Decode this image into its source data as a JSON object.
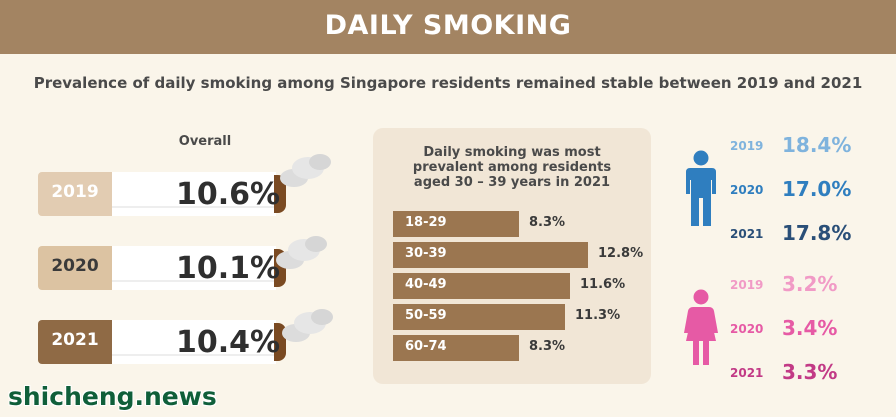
{
  "header": {
    "title": "DAILY SMOKING"
  },
  "subtitle": "Prevalence of daily smoking among Singapore residents remained stable between 2019 and 2021",
  "overall": {
    "label": "Overall",
    "items": [
      {
        "year": "2019",
        "value": "10.6%",
        "filter_color": "#e2ccb2",
        "text_color": "#ffffff"
      },
      {
        "year": "2020",
        "value": "10.1%",
        "filter_color": "#dcc3a2",
        "text_color": "#3a3a3a"
      },
      {
        "year": "2021",
        "value": "10.4%",
        "filter_color": "#8f6a45",
        "text_color": "#ffffff"
      }
    ]
  },
  "chart_data": {
    "type": "bar",
    "title": "Daily smoking was most prevalent among residents aged 30 – 39 years in 2021",
    "categories": [
      "18-29",
      "30-39",
      "40-49",
      "50-59",
      "60-74"
    ],
    "values": [
      8.3,
      12.8,
      11.6,
      11.3,
      8.3
    ],
    "value_labels": [
      "8.3%",
      "12.8%",
      "11.6%",
      "11.3%",
      "8.3%"
    ],
    "xlim": [
      0,
      12.8
    ],
    "bar_color": "#9b7650"
  },
  "gender": {
    "male": {
      "icon": "male-person-icon",
      "color": "#2f7ebf",
      "items": [
        {
          "year": "2019",
          "value": "18.4%",
          "color": "#7fb3dd"
        },
        {
          "year": "2020",
          "value": "17.0%",
          "color": "#2f7ebf"
        },
        {
          "year": "2021",
          "value": "17.8%",
          "color": "#2a4f78"
        }
      ]
    },
    "female": {
      "icon": "female-person-icon",
      "color": "#e65aa5",
      "items": [
        {
          "year": "2019",
          "value": "3.2%",
          "color": "#f19ac6"
        },
        {
          "year": "2020",
          "value": "3.4%",
          "color": "#e65aa5"
        },
        {
          "year": "2021",
          "value": "3.3%",
          "color": "#c23a86"
        }
      ]
    }
  },
  "watermark": "shicheng.news"
}
